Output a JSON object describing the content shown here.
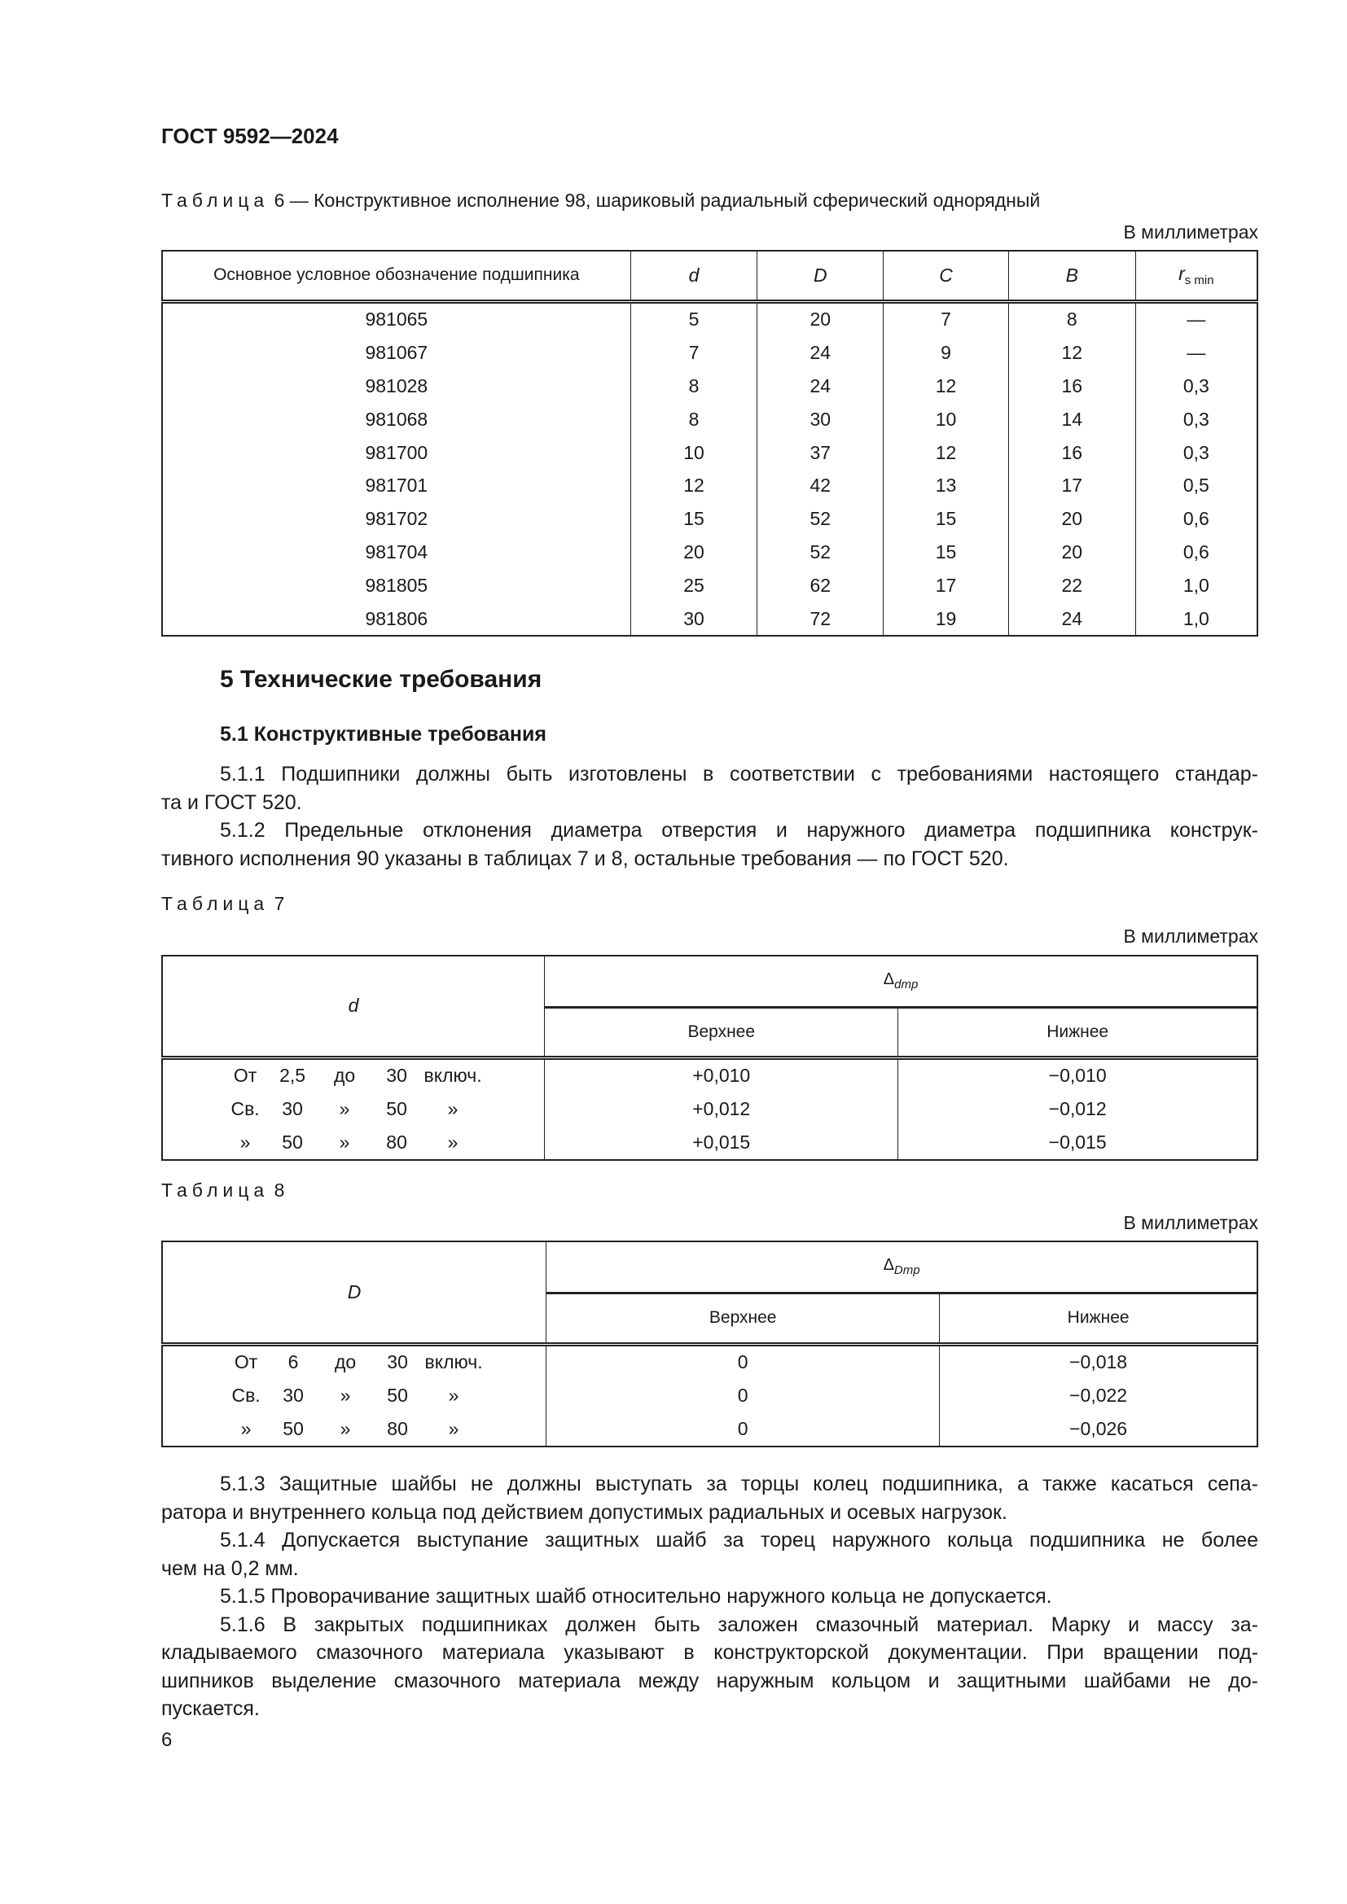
{
  "header": "ГОСТ 9592—2024",
  "unit": "В миллиметрах",
  "table6": {
    "caption_label": "Таблица",
    "caption_rest": "6 — Конструктивное исполнение 98, шариковый радиальный сферический однорядный",
    "headers": [
      "Основное условное обозначение подшипника",
      "d",
      "D",
      "C",
      "B",
      "r"
    ],
    "r_sub": "s min",
    "rows": [
      [
        "981065",
        "5",
        "20",
        "7",
        "8",
        "—"
      ],
      [
        "981067",
        "7",
        "24",
        "9",
        "12",
        "—"
      ],
      [
        "981028",
        "8",
        "24",
        "12",
        "16",
        "0,3"
      ],
      [
        "981068",
        "8",
        "30",
        "10",
        "14",
        "0,3"
      ],
      [
        "981700",
        "10",
        "37",
        "12",
        "16",
        "0,3"
      ],
      [
        "981701",
        "12",
        "42",
        "13",
        "17",
        "0,5"
      ],
      [
        "981702",
        "15",
        "52",
        "15",
        "20",
        "0,6"
      ],
      [
        "981704",
        "20",
        "52",
        "15",
        "20",
        "0,6"
      ],
      [
        "981805",
        "25",
        "62",
        "17",
        "22",
        "1,0"
      ],
      [
        "981806",
        "30",
        "72",
        "19",
        "24",
        "1,0"
      ]
    ]
  },
  "section5": {
    "title": "5 Технические требования",
    "sub": "5.1 Конструктивные требования"
  },
  "paras1": [
    [
      "5.1.1 Подшипники должны быть изготовлены в соответствии с требованиями настоящего стандар-",
      "та и ГОСТ 520."
    ],
    [
      "5.1.2 Предельные отклонения диаметра отверстия и наружного диаметра подшипника конструк-",
      "тивного исполнения 90 указаны в таблицах 7 и 8, остальные требования — по ГОСТ 520."
    ]
  ],
  "table7": {
    "caption_label": "Таблица",
    "caption_num": "7",
    "col1": "d",
    "delta": "Δ",
    "delta_sub": "dmp",
    "upper": "Верхнее",
    "lower": "Нижнее",
    "rows": [
      [
        [
          "От",
          "2,5",
          "до",
          "30",
          "включ."
        ],
        "+0,010",
        "−0,010"
      ],
      [
        [
          "Св.",
          "30",
          "»",
          "50",
          "»"
        ],
        "+0,012",
        "−0,012"
      ],
      [
        [
          "»",
          "50",
          "»",
          "80",
          "»"
        ],
        "+0,015",
        "−0,015"
      ]
    ]
  },
  "table8": {
    "caption_label": "Таблица",
    "caption_num": "8",
    "col1": "D",
    "delta": "Δ",
    "delta_sub": "Dmp",
    "upper": "Верхнее",
    "lower": "Нижнее",
    "rows": [
      [
        [
          "От",
          "6",
          "до",
          "30",
          "включ."
        ],
        "0",
        "−0,018"
      ],
      [
        [
          "Св.",
          "30",
          "»",
          "50",
          "»"
        ],
        "0",
        "−0,022"
      ],
      [
        [
          "»",
          "50",
          "»",
          "80",
          "»"
        ],
        "0",
        "−0,026"
      ]
    ]
  },
  "paras2": [
    [
      "5.1.3 Защитные шайбы не должны выступать за торцы колец подшипника, а также касаться сепа-",
      "ратора и внутреннего кольца под действием допустимых радиальных и осевых нагрузок."
    ],
    [
      "5.1.4 Допускается выступание защитных шайб за торец наружного кольца подшипника не более",
      "чем на 0,2 мм."
    ],
    [
      "5.1.5 Проворачивание защитных шайб относительно наружного кольца не допускается."
    ],
    [
      "5.1.6 В закрытых подшипниках должен быть заложен смазочный материал. Марку и массу за-",
      "кладываемого смазочного материала указывают в конструкторской документации. При вращении под-",
      "шипников выделение смазочного материала между наружным кольцом и защитными шайбами не до-",
      "пускается."
    ]
  ],
  "page_number": "6"
}
